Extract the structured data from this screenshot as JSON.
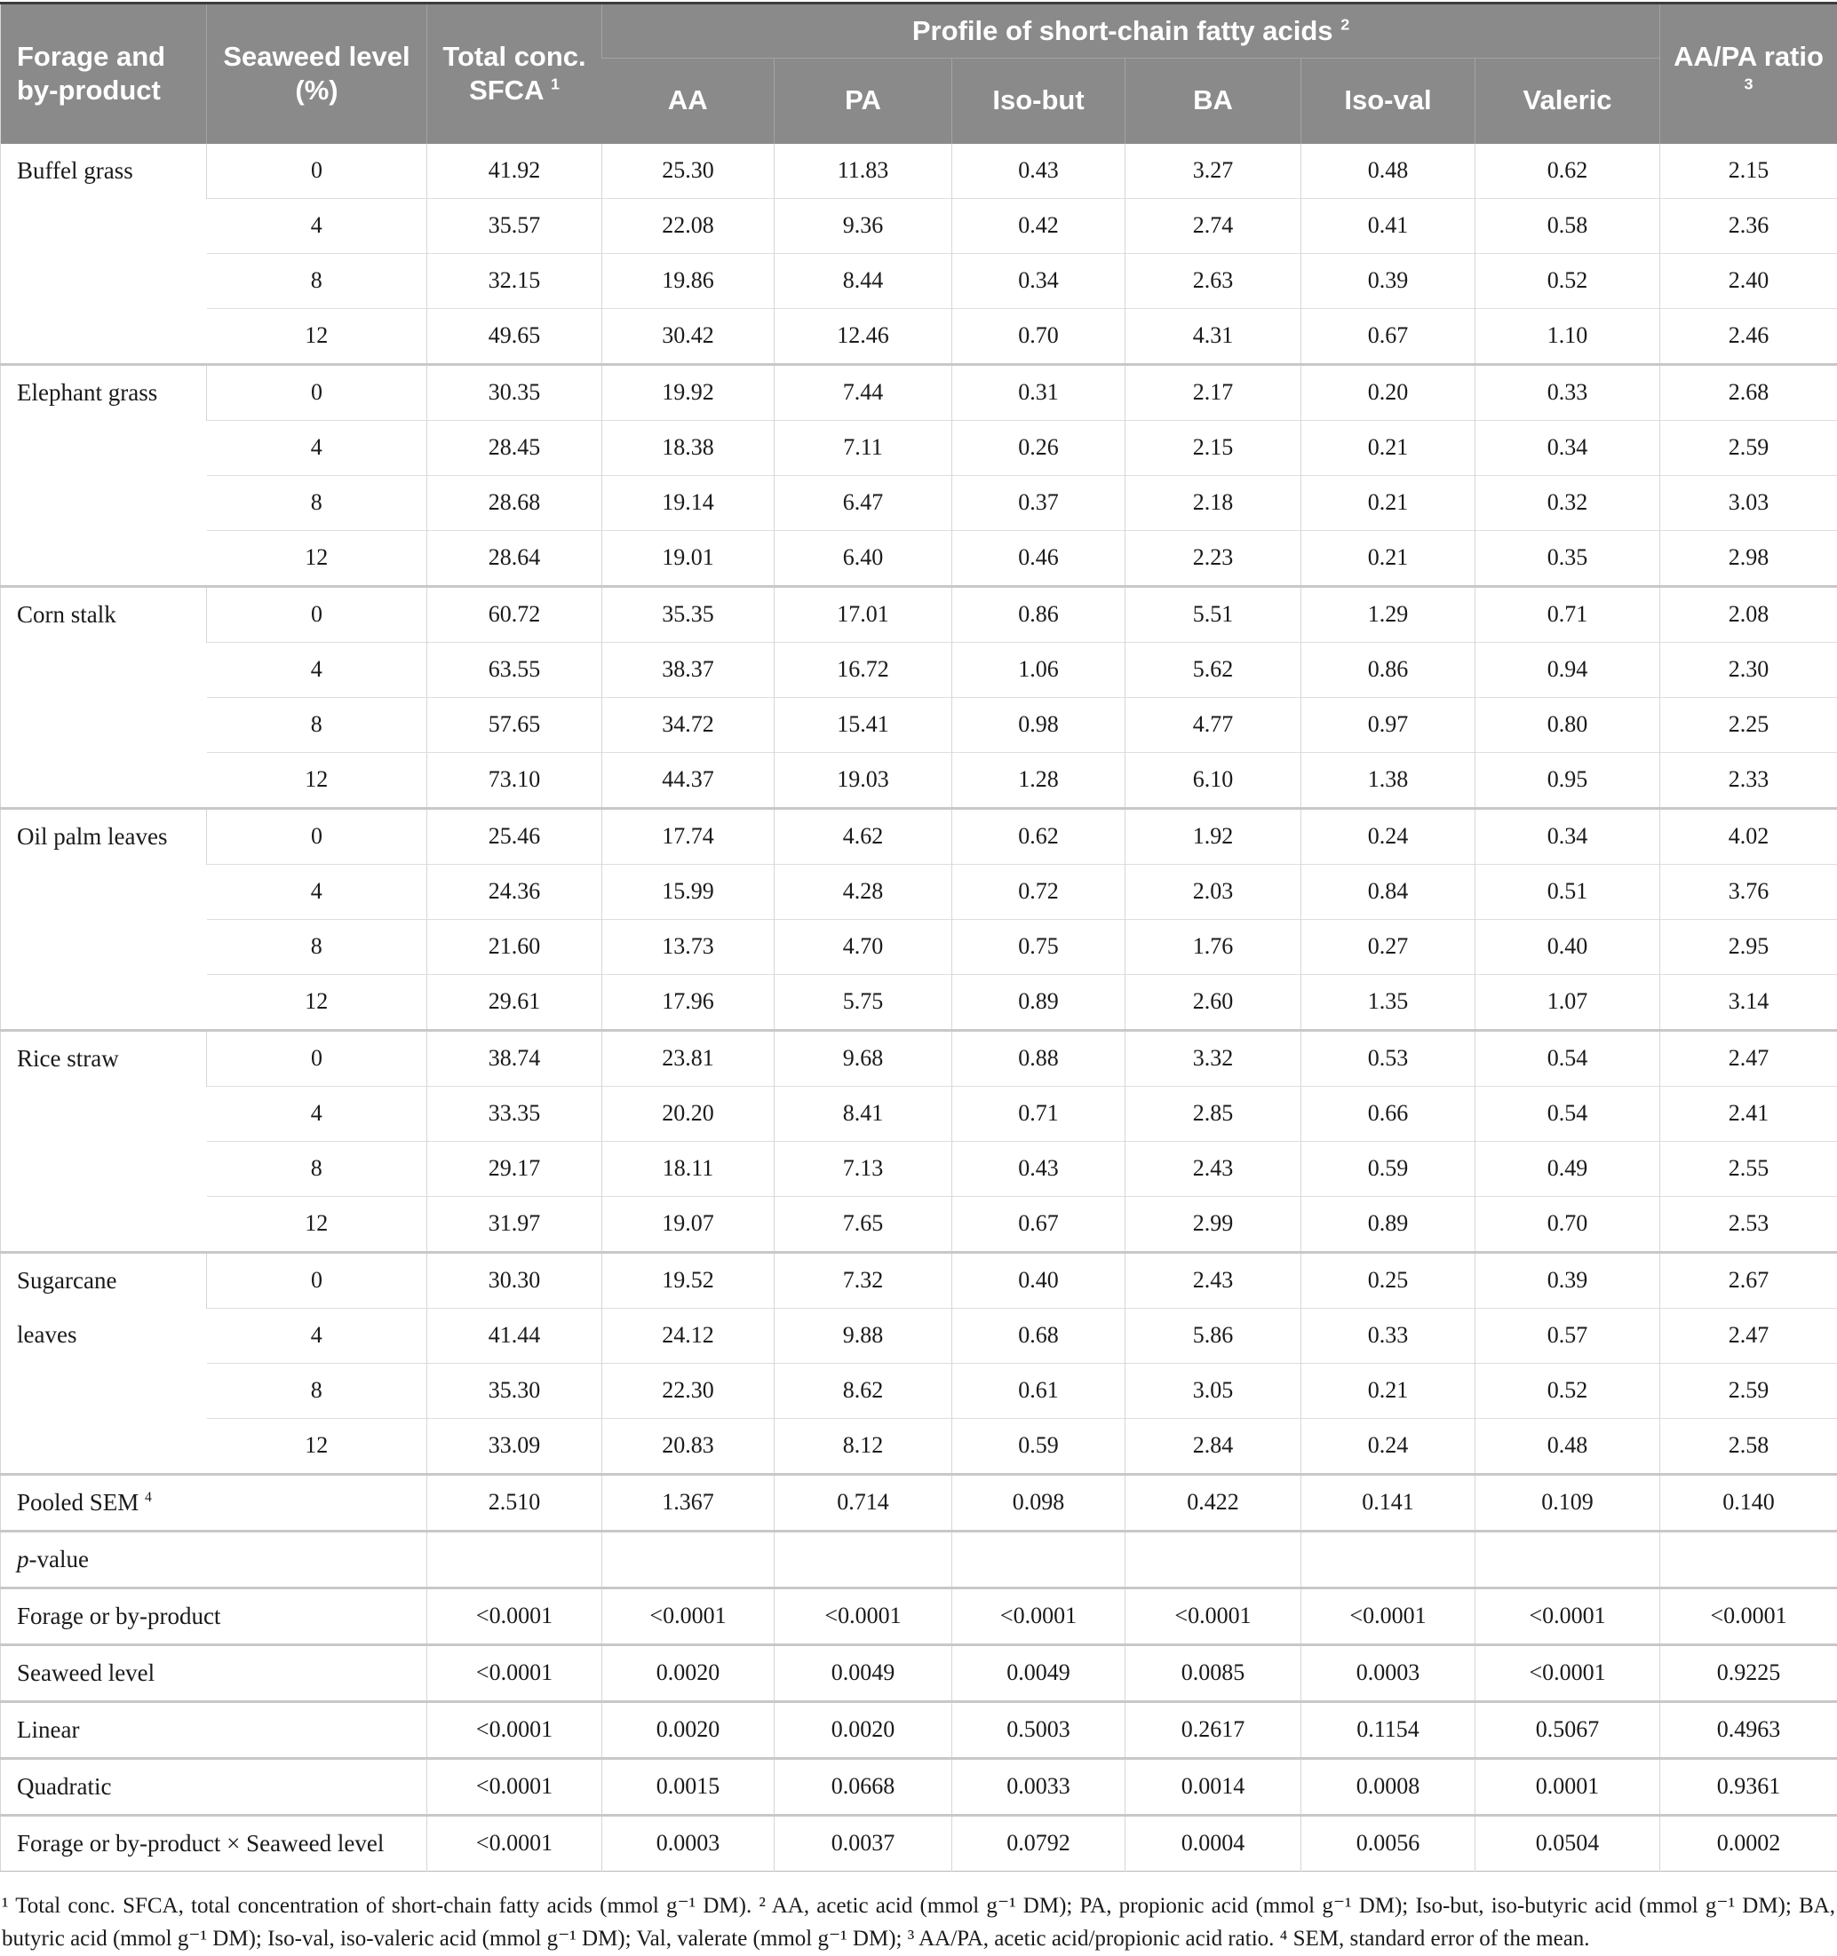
{
  "colors": {
    "header_bg": "#8a8a8a",
    "header_text": "#ffffff",
    "body_text": "#1a1a1a",
    "grid_line": "#d6d6d6",
    "group_line": "#c8c8c8",
    "top_rule": "#3c3c3c"
  },
  "table": {
    "header": {
      "forage": "Forage and by-product",
      "seaweed": "Seaweed level (%)",
      "sfca": {
        "label": "Total conc. SFCA",
        "sup": "1"
      },
      "profile": {
        "label": "Profile of short-chain fatty acids",
        "sup": "2"
      },
      "subcols": [
        "AA",
        "PA",
        "Iso-but",
        "BA",
        "Iso-val",
        "Valeric"
      ],
      "ratio": {
        "label": "AA/PA ratio",
        "sup": "3"
      }
    },
    "groups": [
      {
        "forage": "Buffel grass",
        "rows": [
          {
            "level": "0",
            "values": [
              "41.92",
              "25.30",
              "11.83",
              "0.43",
              "3.27",
              "0.48",
              "0.62",
              "2.15"
            ]
          },
          {
            "level": "4",
            "values": [
              "35.57",
              "22.08",
              "9.36",
              "0.42",
              "2.74",
              "0.41",
              "0.58",
              "2.36"
            ]
          },
          {
            "level": "8",
            "values": [
              "32.15",
              "19.86",
              "8.44",
              "0.34",
              "2.63",
              "0.39",
              "0.52",
              "2.40"
            ]
          },
          {
            "level": "12",
            "values": [
              "49.65",
              "30.42",
              "12.46",
              "0.70",
              "4.31",
              "0.67",
              "1.10",
              "2.46"
            ]
          }
        ]
      },
      {
        "forage": "Elephant grass",
        "rows": [
          {
            "level": "0",
            "values": [
              "30.35",
              "19.92",
              "7.44",
              "0.31",
              "2.17",
              "0.20",
              "0.33",
              "2.68"
            ]
          },
          {
            "level": "4",
            "values": [
              "28.45",
              "18.38",
              "7.11",
              "0.26",
              "2.15",
              "0.21",
              "0.34",
              "2.59"
            ]
          },
          {
            "level": "8",
            "values": [
              "28.68",
              "19.14",
              "6.47",
              "0.37",
              "2.18",
              "0.21",
              "0.32",
              "3.03"
            ]
          },
          {
            "level": "12",
            "values": [
              "28.64",
              "19.01",
              "6.40",
              "0.46",
              "2.23",
              "0.21",
              "0.35",
              "2.98"
            ]
          }
        ]
      },
      {
        "forage": "Corn stalk",
        "rows": [
          {
            "level": "0",
            "values": [
              "60.72",
              "35.35",
              "17.01",
              "0.86",
              "5.51",
              "1.29",
              "0.71",
              "2.08"
            ]
          },
          {
            "level": "4",
            "values": [
              "63.55",
              "38.37",
              "16.72",
              "1.06",
              "5.62",
              "0.86",
              "0.94",
              "2.30"
            ]
          },
          {
            "level": "8",
            "values": [
              "57.65",
              "34.72",
              "15.41",
              "0.98",
              "4.77",
              "0.97",
              "0.80",
              "2.25"
            ]
          },
          {
            "level": "12",
            "values": [
              "73.10",
              "44.37",
              "19.03",
              "1.28",
              "6.10",
              "1.38",
              "0.95",
              "2.33"
            ]
          }
        ]
      },
      {
        "forage": "Oil palm leaves",
        "rows": [
          {
            "level": "0",
            "values": [
              "25.46",
              "17.74",
              "4.62",
              "0.62",
              "1.92",
              "0.24",
              "0.34",
              "4.02"
            ]
          },
          {
            "level": "4",
            "values": [
              "24.36",
              "15.99",
              "4.28",
              "0.72",
              "2.03",
              "0.84",
              "0.51",
              "3.76"
            ]
          },
          {
            "level": "8",
            "values": [
              "21.60",
              "13.73",
              "4.70",
              "0.75",
              "1.76",
              "0.27",
              "0.40",
              "2.95"
            ]
          },
          {
            "level": "12",
            "values": [
              "29.61",
              "17.96",
              "5.75",
              "0.89",
              "2.60",
              "1.35",
              "1.07",
              "3.14"
            ]
          }
        ]
      },
      {
        "forage": "Rice straw",
        "rows": [
          {
            "level": "0",
            "values": [
              "38.74",
              "23.81",
              "9.68",
              "0.88",
              "3.32",
              "0.53",
              "0.54",
              "2.47"
            ]
          },
          {
            "level": "4",
            "values": [
              "33.35",
              "20.20",
              "8.41",
              "0.71",
              "2.85",
              "0.66",
              "0.54",
              "2.41"
            ]
          },
          {
            "level": "8",
            "values": [
              "29.17",
              "18.11",
              "7.13",
              "0.43",
              "2.43",
              "0.59",
              "0.49",
              "2.55"
            ]
          },
          {
            "level": "12",
            "values": [
              "31.97",
              "19.07",
              "7.65",
              "0.67",
              "2.99",
              "0.89",
              "0.70",
              "2.53"
            ]
          }
        ]
      },
      {
        "forage": "Sugarcane leaves",
        "rows": [
          {
            "level": "0",
            "values": [
              "30.30",
              "19.52",
              "7.32",
              "0.40",
              "2.43",
              "0.25",
              "0.39",
              "2.67"
            ]
          },
          {
            "level": "4",
            "values": [
              "41.44",
              "24.12",
              "9.88",
              "0.68",
              "5.86",
              "0.33",
              "0.57",
              "2.47"
            ]
          },
          {
            "level": "8",
            "values": [
              "35.30",
              "22.30",
              "8.62",
              "0.61",
              "3.05",
              "0.21",
              "0.52",
              "2.59"
            ]
          },
          {
            "level": "12",
            "values": [
              "33.09",
              "20.83",
              "8.12",
              "0.59",
              "2.84",
              "0.24",
              "0.48",
              "2.58"
            ]
          }
        ]
      }
    ],
    "summary_rows": [
      {
        "label": "Pooled SEM",
        "sup": "4",
        "values": [
          "2.510",
          "1.367",
          "0.714",
          "0.098",
          "0.422",
          "0.141",
          "0.109",
          "0.140"
        ]
      },
      {
        "label": "p-value",
        "italic_first": true,
        "values": [
          "",
          "",
          "",
          "",
          "",
          "",
          "",
          ""
        ]
      },
      {
        "label": "Forage or by-product",
        "values": [
          "<0.0001",
          "<0.0001",
          "<0.0001",
          "<0.0001",
          "<0.0001",
          "<0.0001",
          "<0.0001",
          "<0.0001"
        ]
      },
      {
        "label": "Seaweed level",
        "values": [
          "<0.0001",
          "0.0020",
          "0.0049",
          "0.0049",
          "0.0085",
          "0.0003",
          "<0.0001",
          "0.9225"
        ]
      },
      {
        "label": "Linear",
        "values": [
          "<0.0001",
          "0.0020",
          "0.0020",
          "0.5003",
          "0.2617",
          "0.1154",
          "0.5067",
          "0.4963"
        ]
      },
      {
        "label": "Quadratic",
        "values": [
          "<0.0001",
          "0.0015",
          "0.0668",
          "0.0033",
          "0.0014",
          "0.0008",
          "0.0001",
          "0.9361"
        ]
      },
      {
        "label": "Forage or by-product × Seaweed level",
        "values": [
          "<0.0001",
          "0.0003",
          "0.0037",
          "0.0792",
          "0.0004",
          "0.0056",
          "0.0504",
          "0.0002"
        ]
      }
    ]
  },
  "footnote": "¹ Total conc. SFCA, total concentration of short-chain fatty acids (mmol g⁻¹ DM). ² AA, acetic acid (mmol g⁻¹ DM); PA, propionic acid (mmol g⁻¹ DM); Iso-but, iso-butyric acid (mmol g⁻¹ DM); BA, butyric acid (mmol g⁻¹ DM); Iso-val, iso-valeric acid (mmol g⁻¹ DM); Val, valerate (mmol g⁻¹ DM); ³ AA/PA, acetic acid/propionic acid ratio. ⁴ SEM, standard error of the mean."
}
